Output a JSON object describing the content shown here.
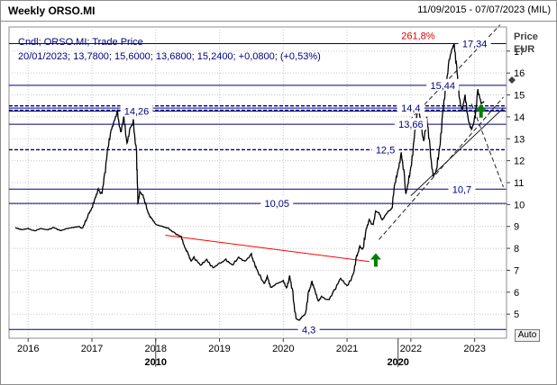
{
  "header": {
    "title": "Weekly ORSO.MI",
    "date_range": "11/09/2015 - 07/07/2023 (MIL)"
  },
  "info": {
    "line1": "Cndl; ORSO.MI; Trade Price",
    "line2": "20/01/2023; 13,7800; 15,6000; 13,6800; 15,2400; +0,0800; (+0,53%)"
  },
  "axis": {
    "price_label": "Price",
    "currency_label": "EUR",
    "auto_label": "Auto"
  },
  "colors": {
    "price_line": "#000000",
    "levels": "#000080",
    "trend_red": "#ff0000",
    "arrow_green": "#008000",
    "grid": "#c8c8c8"
  },
  "chart_data": {
    "type": "line",
    "ylim": [
      3.9,
      18.1
    ],
    "xlim": [
      2015.7,
      2023.5
    ],
    "y_ticks": [
      5,
      6,
      7,
      8,
      9,
      10,
      11,
      12,
      13,
      14,
      15,
      16,
      17
    ],
    "x_ticks": [
      {
        "x": 2016,
        "label": "2016"
      },
      {
        "x": 2017,
        "label": "2017"
      },
      {
        "x": 2018,
        "label": "2018"
      },
      {
        "x": 2019,
        "label": "2019"
      },
      {
        "x": 2020,
        "label": "2020"
      },
      {
        "x": 2021,
        "label": "2021"
      },
      {
        "x": 2022,
        "label": "2022"
      },
      {
        "x": 2023,
        "label": "2023"
      }
    ],
    "x_ticks_major": [
      {
        "x": 2018.0,
        "label": "2010"
      },
      {
        "x": 2021.8,
        "label": "2020"
      }
    ],
    "levels": [
      {
        "y": 17.34,
        "label": "17,34",
        "style": "solid",
        "label_x": 2023.0
      },
      {
        "y": 15.44,
        "label": "15,44",
        "style": "solid",
        "label_x": 2022.5
      },
      {
        "y": 14.4,
        "label": "14,4",
        "style": "solid",
        "label_x": 2022.0
      },
      {
        "y": 14.26,
        "label": "14,26",
        "style": "solid",
        "label_x": 2017.7
      },
      {
        "y": 14.5,
        "label": "",
        "style": "dashed",
        "label_x": 2017.7
      },
      {
        "y": 14.3,
        "label": "",
        "style": "dashed",
        "label_x": 2017.7
      },
      {
        "y": 13.66,
        "label": "13,66",
        "style": "solid",
        "label_x": 2022.0
      },
      {
        "y": 12.5,
        "label": "12,5",
        "style": "dashed",
        "label_x": 2021.6
      },
      {
        "y": 10.7,
        "label": "10,7",
        "style": "solid",
        "label_x": 2022.8
      },
      {
        "y": 10.05,
        "label": "10,05",
        "style": "solid",
        "label_x": 2019.9
      },
      {
        "y": 4.3,
        "label": "4,3",
        "style": "solid",
        "label_x": 2020.4
      }
    ],
    "annotations": [
      {
        "x": 2021.85,
        "y": 17.7,
        "text": "261,8%"
      }
    ],
    "series": [
      {
        "values": [
          [
            2015.8,
            8.95
          ],
          [
            2015.9,
            8.85
          ],
          [
            2016.0,
            8.9
          ],
          [
            2016.1,
            8.8
          ],
          [
            2016.2,
            8.9
          ],
          [
            2016.3,
            8.85
          ],
          [
            2016.4,
            8.95
          ],
          [
            2016.5,
            8.8
          ],
          [
            2016.6,
            8.9
          ],
          [
            2016.7,
            8.95
          ],
          [
            2016.8,
            9.0
          ],
          [
            2016.85,
            8.9
          ],
          [
            2016.9,
            9.2
          ],
          [
            2016.95,
            9.6
          ],
          [
            2017.0,
            9.8
          ],
          [
            2017.05,
            10.3
          ],
          [
            2017.1,
            10.7
          ],
          [
            2017.15,
            10.4
          ],
          [
            2017.2,
            11.4
          ],
          [
            2017.25,
            12.5
          ],
          [
            2017.3,
            13.4
          ],
          [
            2017.35,
            13.8
          ],
          [
            2017.4,
            14.2
          ],
          [
            2017.45,
            13.3
          ],
          [
            2017.5,
            13.9
          ],
          [
            2017.55,
            12.8
          ],
          [
            2017.6,
            13.5
          ],
          [
            2017.65,
            13.7
          ],
          [
            2017.7,
            12.4
          ],
          [
            2017.72,
            10.0
          ],
          [
            2017.75,
            10.6
          ],
          [
            2017.8,
            10.4
          ],
          [
            2017.85,
            9.9
          ],
          [
            2017.9,
            9.5
          ],
          [
            2017.95,
            9.3
          ],
          [
            2018.0,
            9.1
          ],
          [
            2018.1,
            9.0
          ],
          [
            2018.2,
            8.9
          ],
          [
            2018.3,
            8.7
          ],
          [
            2018.4,
            8.5
          ],
          [
            2018.45,
            8.1
          ],
          [
            2018.5,
            7.8
          ],
          [
            2018.55,
            7.4
          ],
          [
            2018.6,
            7.6
          ],
          [
            2018.7,
            7.2
          ],
          [
            2018.8,
            7.5
          ],
          [
            2018.9,
            7.1
          ],
          [
            2019.0,
            7.3
          ],
          [
            2019.1,
            7.5
          ],
          [
            2019.2,
            7.2
          ],
          [
            2019.3,
            7.6
          ],
          [
            2019.4,
            7.4
          ],
          [
            2019.5,
            7.7
          ],
          [
            2019.55,
            7.3
          ],
          [
            2019.6,
            6.9
          ],
          [
            2019.7,
            6.4
          ],
          [
            2019.75,
            6.7
          ],
          [
            2019.8,
            6.2
          ],
          [
            2019.9,
            6.4
          ],
          [
            2020.0,
            6.5
          ],
          [
            2020.05,
            6.2
          ],
          [
            2020.1,
            6.7
          ],
          [
            2020.15,
            5.9
          ],
          [
            2020.2,
            4.8
          ],
          [
            2020.25,
            4.7
          ],
          [
            2020.3,
            4.9
          ],
          [
            2020.35,
            5.0
          ],
          [
            2020.4,
            6.0
          ],
          [
            2020.45,
            6.5
          ],
          [
            2020.5,
            6.0
          ],
          [
            2020.55,
            5.6
          ],
          [
            2020.6,
            5.8
          ],
          [
            2020.7,
            5.6
          ],
          [
            2020.8,
            6.1
          ],
          [
            2020.9,
            6.6
          ],
          [
            2021.0,
            6.3
          ],
          [
            2021.1,
            6.8
          ],
          [
            2021.15,
            7.6
          ],
          [
            2021.2,
            8.1
          ],
          [
            2021.25,
            7.9
          ],
          [
            2021.3,
            8.9
          ],
          [
            2021.35,
            9.3
          ],
          [
            2021.4,
            9.0
          ],
          [
            2021.45,
            9.7
          ],
          [
            2021.5,
            9.6
          ],
          [
            2021.55,
            9.3
          ],
          [
            2021.6,
            9.5
          ],
          [
            2021.65,
            9.7
          ],
          [
            2021.7,
            9.8
          ],
          [
            2021.75,
            10.9
          ],
          [
            2021.8,
            11.6
          ],
          [
            2021.85,
            12.3
          ],
          [
            2021.9,
            11.2
          ],
          [
            2021.92,
            10.5
          ],
          [
            2021.95,
            10.8
          ],
          [
            2022.0,
            11.7
          ],
          [
            2022.05,
            12.9
          ],
          [
            2022.08,
            13.8
          ],
          [
            2022.12,
            14.6
          ],
          [
            2022.15,
            13.7
          ],
          [
            2022.2,
            12.9
          ],
          [
            2022.25,
            13.9
          ],
          [
            2022.3,
            12.5
          ],
          [
            2022.35,
            11.3
          ],
          [
            2022.4,
            11.5
          ],
          [
            2022.45,
            12.6
          ],
          [
            2022.5,
            14.1
          ],
          [
            2022.55,
            15.4
          ],
          [
            2022.6,
            16.6
          ],
          [
            2022.65,
            17.1
          ],
          [
            2022.68,
            17.34
          ],
          [
            2022.72,
            16.2
          ],
          [
            2022.75,
            15.1
          ],
          [
            2022.8,
            14.3
          ],
          [
            2022.85,
            14.9
          ],
          [
            2022.9,
            13.9
          ],
          [
            2022.95,
            13.4
          ],
          [
            2023.0,
            13.8
          ],
          [
            2023.05,
            15.24
          ],
          [
            2023.1,
            14.6
          ],
          [
            2023.15,
            14.7
          ]
        ]
      }
    ],
    "trendlines": [
      {
        "points": [
          [
            2018.15,
            8.6
          ],
          [
            2021.35,
            7.4
          ]
        ],
        "color": "red",
        "style": "solid"
      },
      {
        "points": [
          [
            2021.5,
            8.4
          ],
          [
            2023.45,
            14.9
          ]
        ],
        "color": "dark",
        "style": "dashed"
      },
      {
        "points": [
          [
            2022.0,
            10.4
          ],
          [
            2023.45,
            14.4
          ]
        ],
        "color": "dark",
        "style": "solid"
      },
      {
        "points": [
          [
            2021.9,
            13.6
          ],
          [
            2023.4,
            18.2
          ]
        ],
        "color": "dark",
        "style": "dashed"
      },
      {
        "points": [
          [
            2022.95,
            14.6
          ],
          [
            2023.45,
            10.8
          ]
        ],
        "color": "dark",
        "style": "dashed"
      }
    ],
    "arrows": [
      {
        "x": 2021.45,
        "y": 7.45
      },
      {
        "x": 2023.1,
        "y": 14.25
      }
    ]
  }
}
